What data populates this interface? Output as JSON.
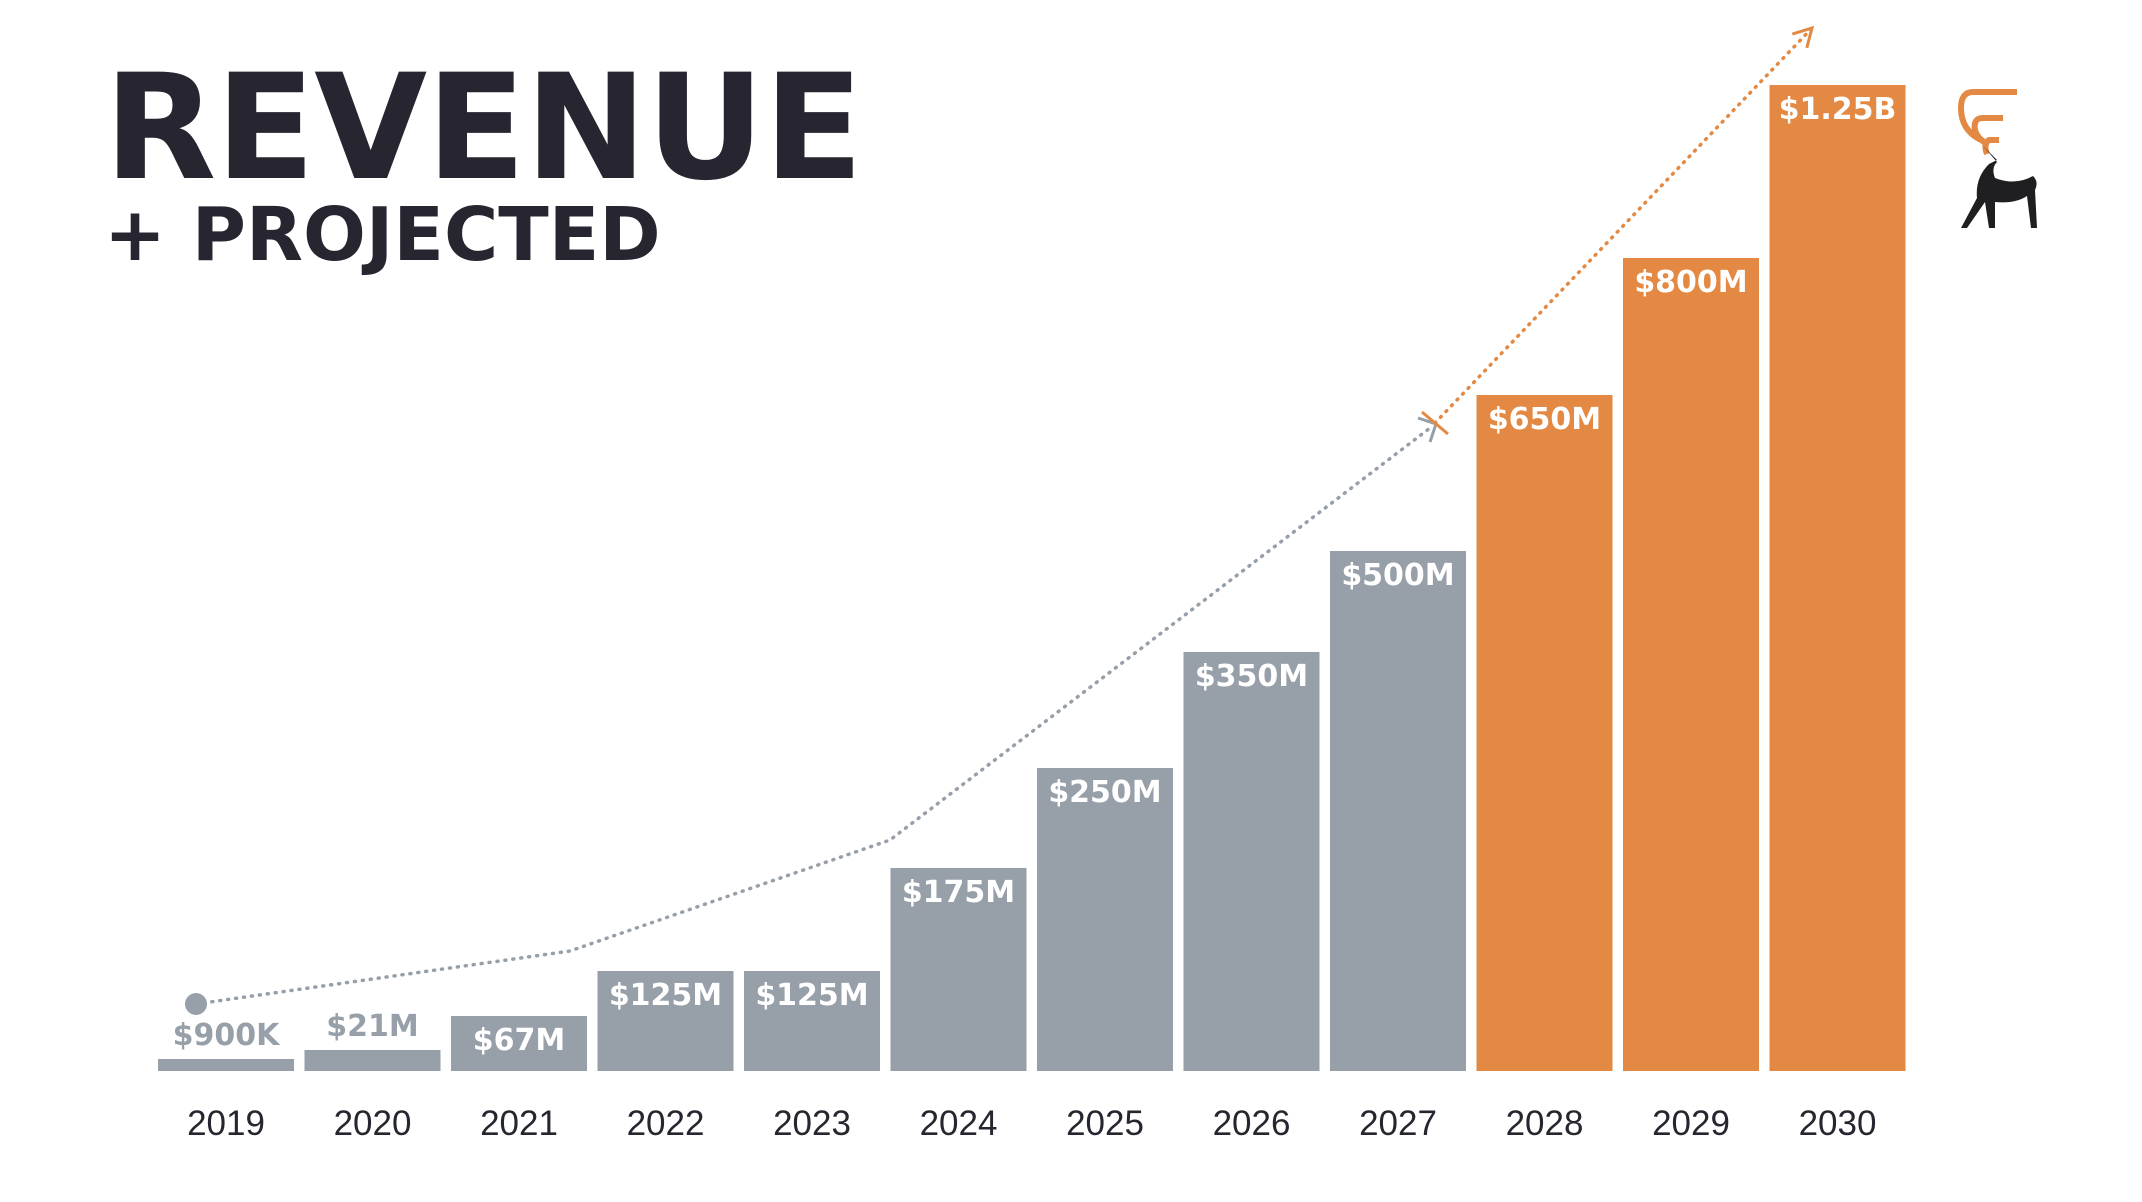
{
  "chart_data": {
    "type": "bar",
    "title": "REVENUE",
    "subtitle": "+ PROJECTED",
    "xlabel": "",
    "ylabel": "",
    "categories": [
      "2019",
      "2020",
      "2021",
      "2022",
      "2023",
      "2024",
      "2025",
      "2026",
      "2027",
      "2028",
      "2029",
      "2030"
    ],
    "values_usd_millions": [
      0.9,
      21,
      67,
      125,
      125,
      175,
      250,
      350,
      500,
      650,
      800,
      1250
    ],
    "labels": [
      "$900K",
      "$21M",
      "$67M",
      "$125M",
      "$125M",
      "$175M",
      "$250M",
      "$350M",
      "$500M",
      "$650M",
      "$800M",
      "$1.25B"
    ],
    "projected": [
      false,
      false,
      false,
      false,
      false,
      false,
      false,
      false,
      false,
      true,
      true,
      true
    ],
    "grid": false,
    "colors": {
      "actual": "#979fa8",
      "projected": "#e38943",
      "text": "#272630"
    }
  }
}
